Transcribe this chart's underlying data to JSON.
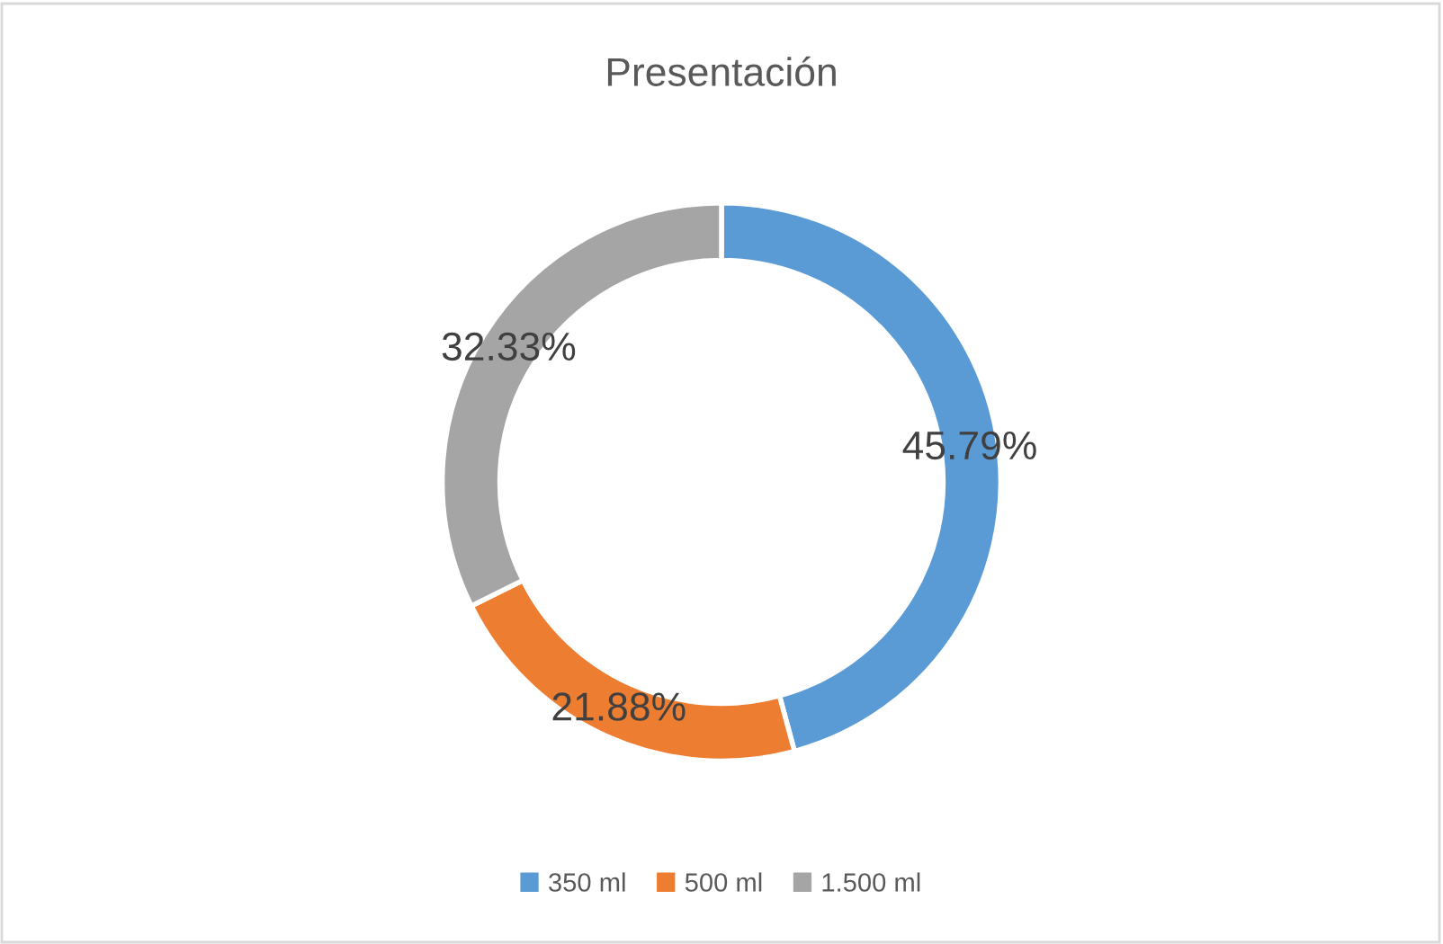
{
  "chart_data": {
    "type": "donut",
    "title": "Presentación",
    "categories": [
      "350 ml",
      "500 ml",
      "1.500 ml"
    ],
    "values": [
      45.79,
      21.88,
      32.33
    ],
    "colors": [
      "#5b9bd5",
      "#ed7d31",
      "#a5a5a5"
    ],
    "value_labels": [
      "45.79%",
      "21.88%",
      "32.33%"
    ],
    "legend": "bottom"
  }
}
